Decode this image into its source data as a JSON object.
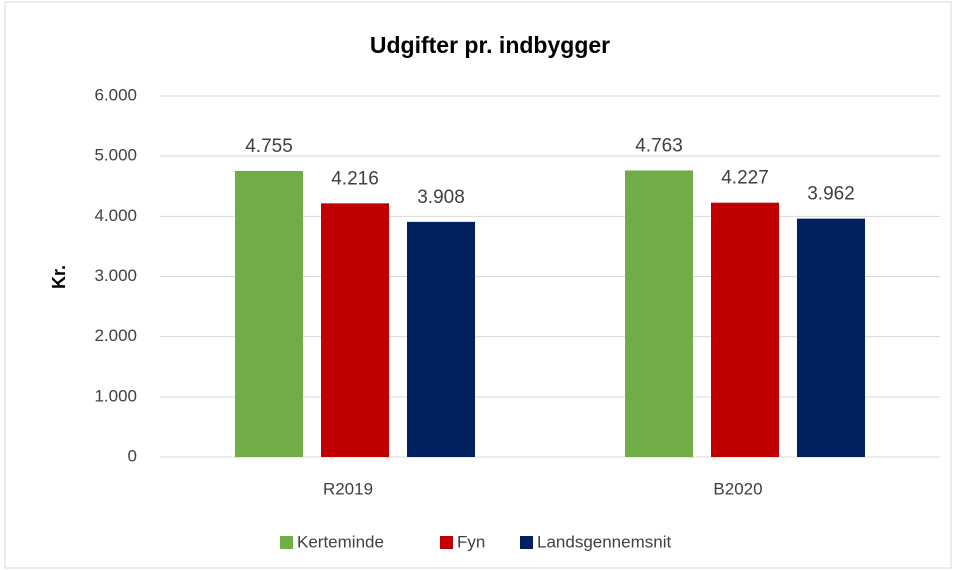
{
  "chart_data": {
    "type": "bar",
    "title": "Udgifter pr. indbygger",
    "ylabel": "Kr.",
    "categories": [
      "R2019",
      "B2020"
    ],
    "series": [
      {
        "name": "Kerteminde",
        "color": "#70ad47",
        "values": [
          4755,
          4763
        ],
        "value_labels": [
          "4.755",
          "4.763"
        ]
      },
      {
        "name": "Fyn",
        "color": "#c00000",
        "values": [
          4216,
          4227
        ],
        "value_labels": [
          "4.216",
          "4.227"
        ]
      },
      {
        "name": "Landsgennemsnit",
        "color": "#002060",
        "values": [
          3908,
          3962
        ],
        "value_labels": [
          "3.908",
          "3.962"
        ]
      }
    ],
    "ylim": [
      0,
      6000
    ],
    "yticks": [
      0,
      {
        "value": 1000,
        "label": "1.000"
      },
      {
        "value": 2000,
        "label": "2.000"
      },
      {
        "value": 3000,
        "label": "3.000"
      },
      {
        "value": 4000,
        "label": "4.000"
      },
      {
        "value": 5000,
        "label": "5.000"
      },
      {
        "value": 6000,
        "label": "6.000"
      }
    ],
    "grid": true,
    "legend": "bottom"
  }
}
